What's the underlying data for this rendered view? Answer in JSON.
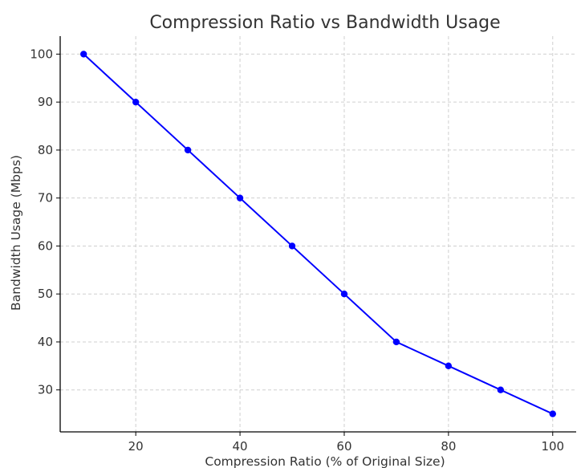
{
  "chart_data": {
    "type": "line",
    "title": "Compression Ratio vs Bandwidth Usage",
    "xlabel": "Compression Ratio (% of Original Size)",
    "ylabel": "Bandwidth Usage (Mbps)",
    "x": [
      10,
      20,
      30,
      40,
      50,
      60,
      70,
      80,
      90,
      100
    ],
    "series": [
      {
        "values": [
          100,
          90,
          80,
          70,
          60,
          50,
          40,
          35,
          30,
          25
        ],
        "color": "#0000ff",
        "marker": "circle"
      }
    ],
    "xlim": [
      5.5,
      104.5
    ],
    "ylim": [
      21.25,
      103.75
    ],
    "xticks": [
      20,
      40,
      60,
      80,
      100
    ],
    "yticks": [
      30,
      40,
      50,
      60,
      70,
      80,
      90,
      100
    ],
    "grid": true,
    "legend": "none",
    "spines": [
      "left",
      "bottom"
    ]
  }
}
